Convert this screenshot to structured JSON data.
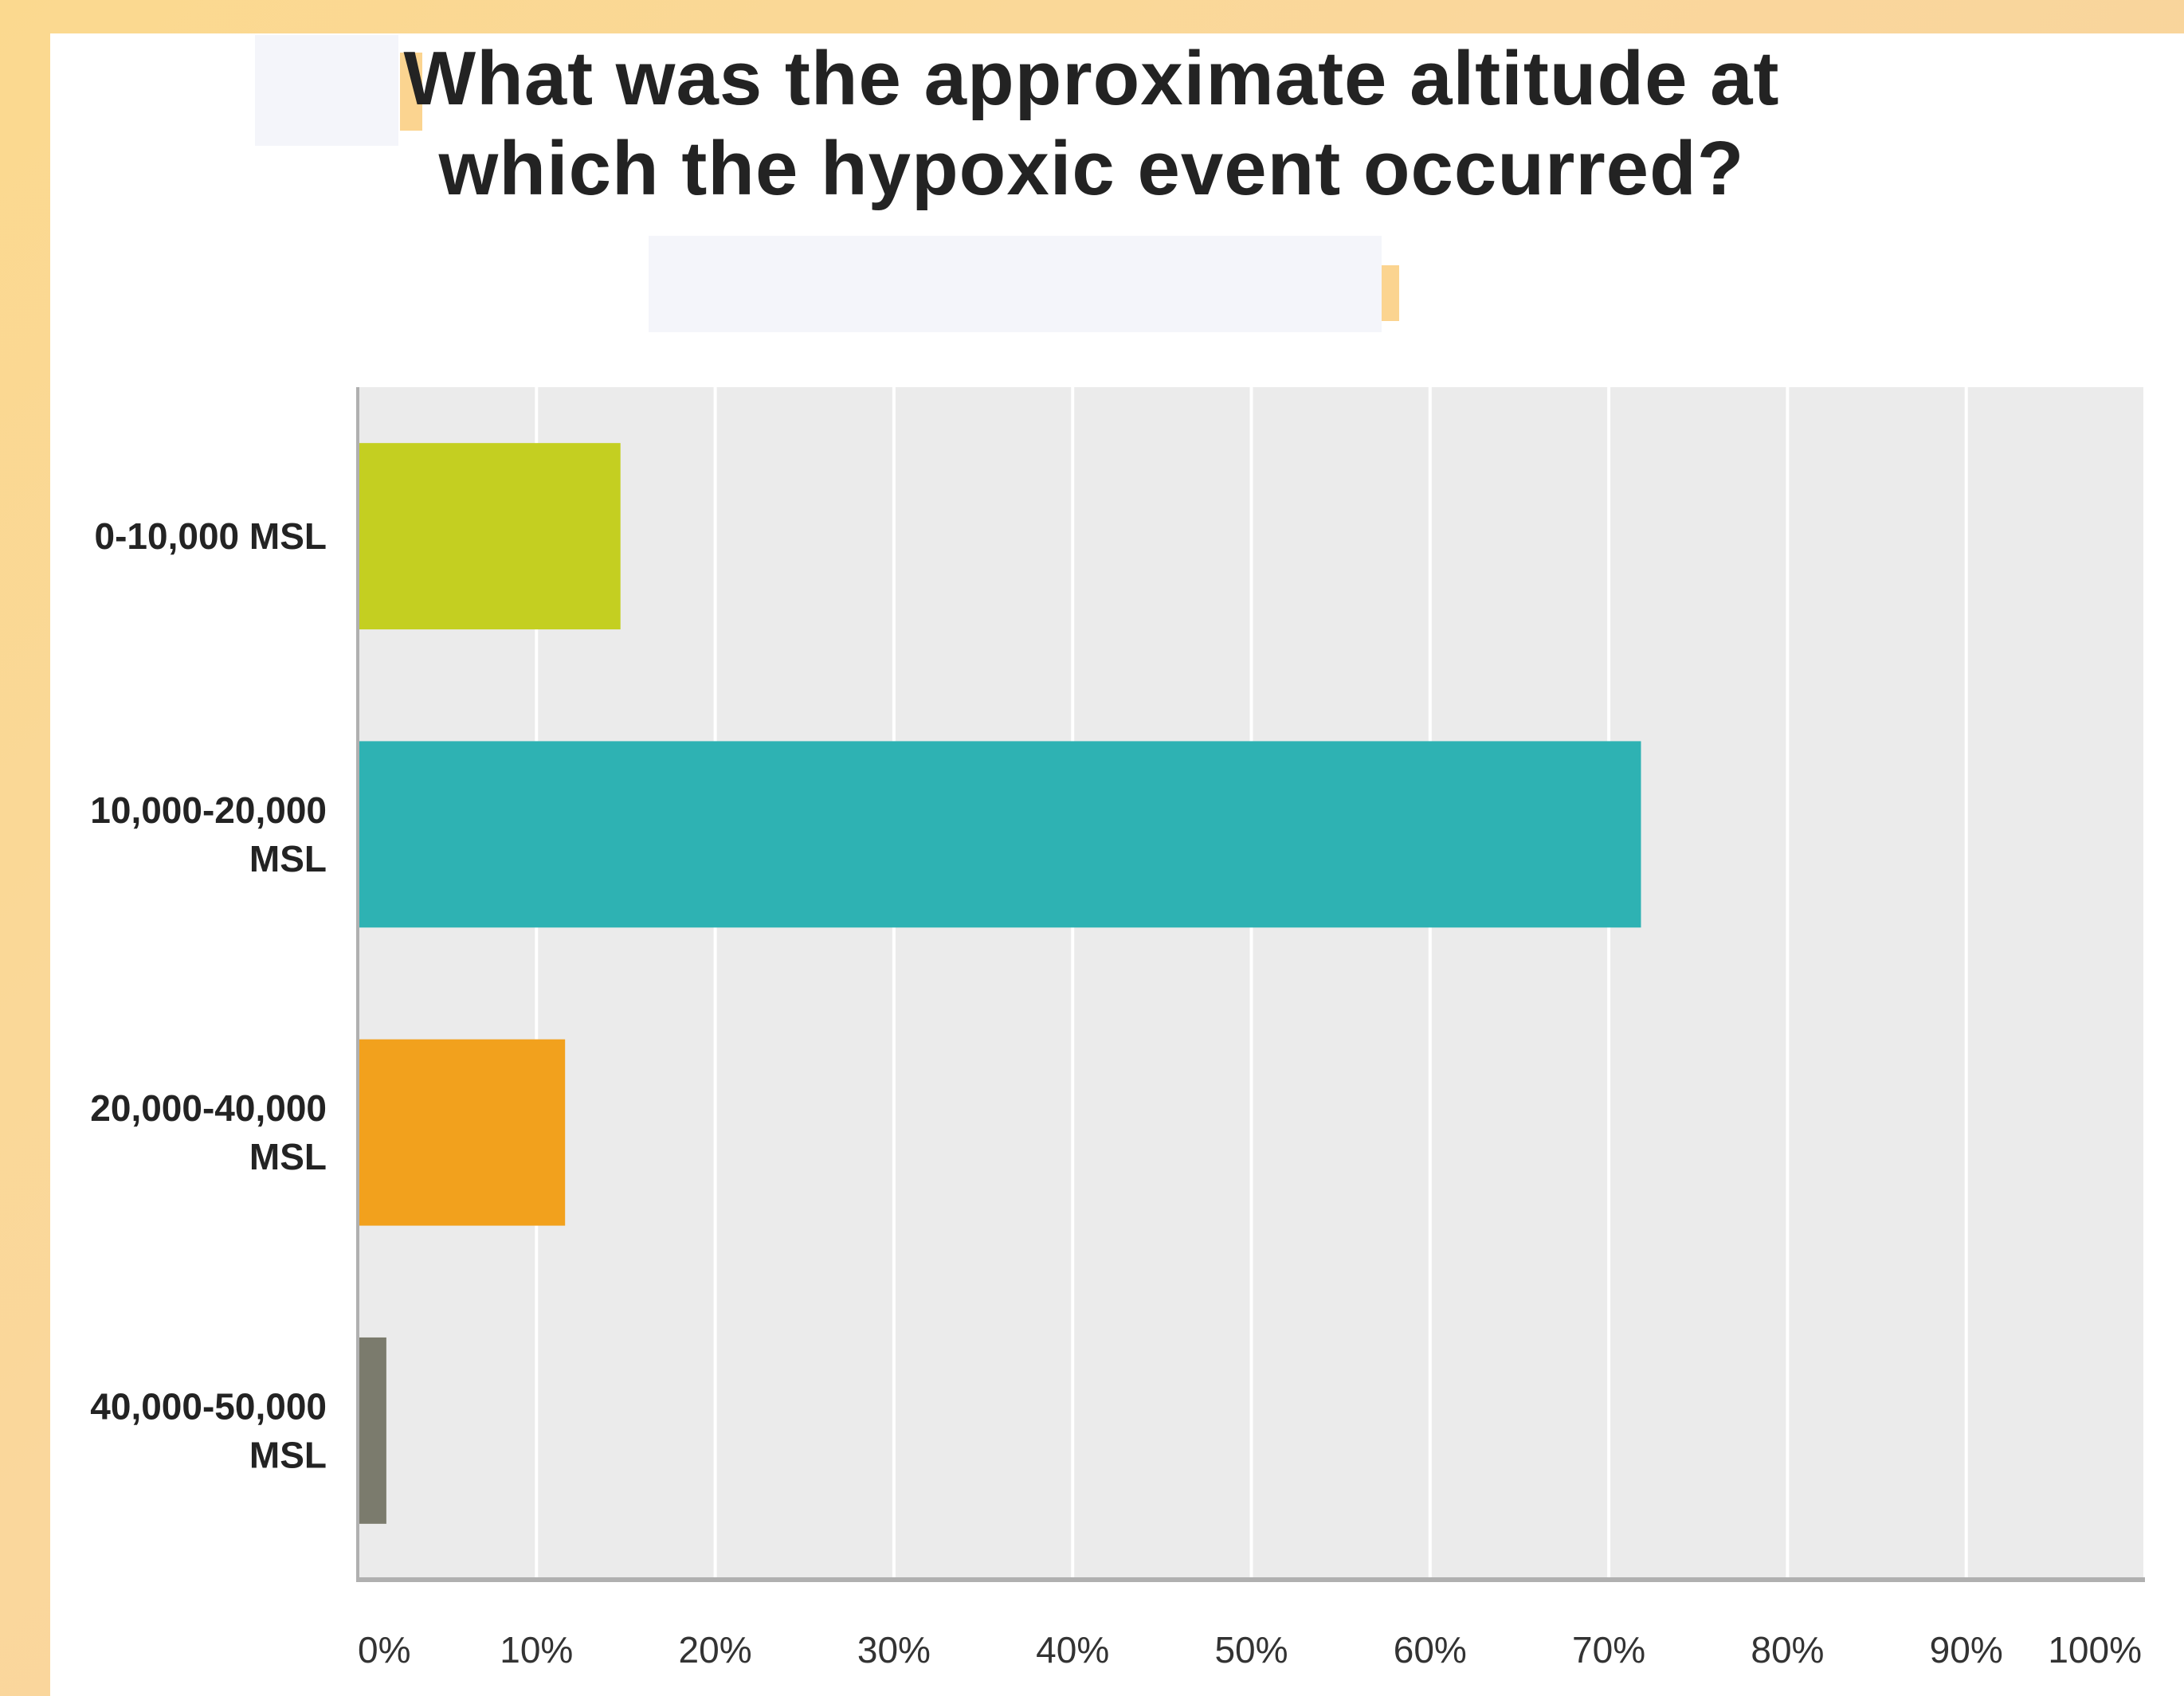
{
  "chart_data": {
    "type": "bar",
    "orientation": "horizontal",
    "title": "What was the approximate altitude at which the hypoxic event occurred?",
    "categories": [
      "0-10,000 MSL",
      "10,000-20,000 MSL",
      "20,000-40,000 MSL",
      "40,000-50,000 MSL"
    ],
    "category_lines": [
      [
        "0-10,000 MSL"
      ],
      [
        "10,000-20,000",
        "MSL"
      ],
      [
        "20,000-40,000",
        "MSL"
      ],
      [
        "40,000-50,000",
        "MSL"
      ]
    ],
    "values": [
      14.7,
      71.8,
      11.6,
      1.6
    ],
    "bar_colors": [
      "#c4cf21",
      "#2eb2b3",
      "#f2a11d",
      "#7b7b6d"
    ],
    "xlim": [
      0,
      100
    ],
    "xticks": [
      0,
      10,
      20,
      30,
      40,
      50,
      60,
      70,
      80,
      90,
      100
    ],
    "xtick_labels": [
      "0%",
      "10%",
      "20%",
      "30%",
      "40%",
      "50%",
      "60%",
      "70%",
      "80%",
      "90%",
      "100%"
    ],
    "xlabel": "",
    "ylabel": "",
    "grid": true,
    "colors": {
      "plot_background": "#ebebeb",
      "gridline": "#ffffff",
      "axis": "#b0b0b0",
      "text": "#232323",
      "tick_text": "#333333"
    }
  }
}
